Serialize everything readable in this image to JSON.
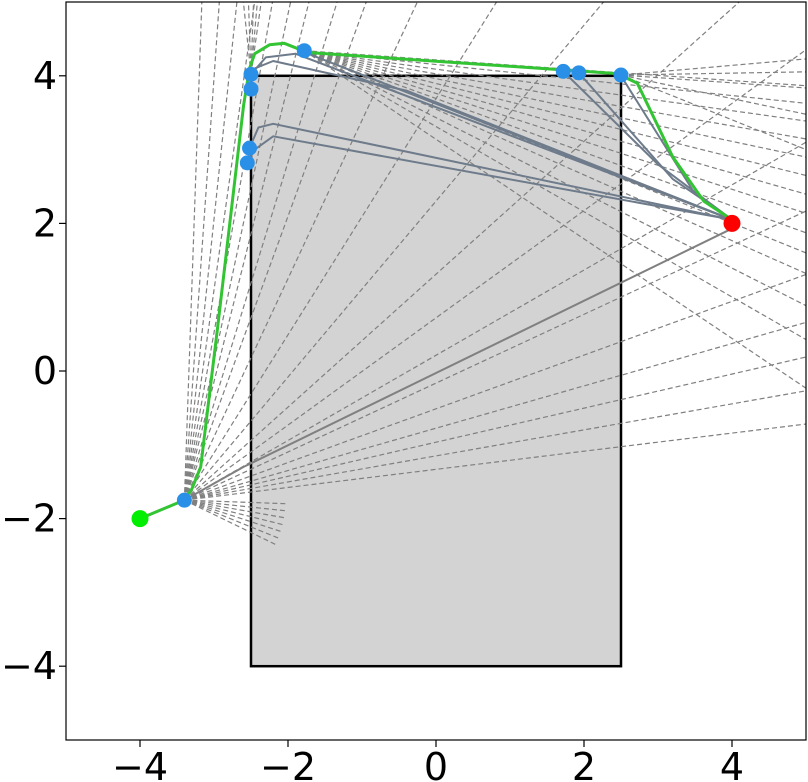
{
  "chart_data": {
    "type": "scatter",
    "title": "",
    "xlabel": "",
    "ylabel": "",
    "xlim": [
      -5,
      5
    ],
    "ylim": [
      -5,
      5
    ],
    "grid": false,
    "legend": "none",
    "x_ticks": [
      {
        "value": -4,
        "label": "−4"
      },
      {
        "value": -2,
        "label": "−2"
      },
      {
        "value": 0,
        "label": "0"
      },
      {
        "value": 2,
        "label": "2"
      },
      {
        "value": 4,
        "label": "4"
      }
    ],
    "y_ticks": [
      {
        "value": -4,
        "label": "−4"
      },
      {
        "value": -2,
        "label": "−2"
      },
      {
        "value": 0,
        "label": "0"
      },
      {
        "value": 2,
        "label": "2"
      },
      {
        "value": 4,
        "label": "4"
      }
    ],
    "obstacle": {
      "x0": -2.5,
      "x1": 2.5,
      "y0": -4,
      "y1": 4,
      "fill": "#d3d3d3",
      "edge": "#000000"
    },
    "start": {
      "x": -4,
      "y": -2,
      "color": "#00ee00"
    },
    "goal": {
      "x": 4,
      "y": 2,
      "color": "#ff0000"
    },
    "waypoints": {
      "color": "#2a8fe6",
      "points": [
        [
          -3.4,
          -1.75
        ],
        [
          -2.55,
          2.82
        ],
        [
          -2.52,
          3.02
        ],
        [
          -2.5,
          3.82
        ],
        [
          -2.5,
          4.02
        ],
        [
          -1.78,
          4.34
        ],
        [
          1.72,
          4.06
        ],
        [
          1.93,
          4.04
        ],
        [
          2.5,
          4.01
        ]
      ]
    },
    "final_path": {
      "color": "#33c433",
      "points": [
        [
          -4,
          -2
        ],
        [
          -3.4,
          -1.75
        ],
        [
          -3.3,
          -1.6
        ],
        [
          -3.18,
          -1.3
        ],
        [
          -2.95,
          0.6
        ],
        [
          -2.6,
          3.6
        ],
        [
          -2.52,
          4.1
        ],
        [
          -2.45,
          4.3
        ],
        [
          -2.25,
          4.42
        ],
        [
          -2.05,
          4.44
        ],
        [
          -1.85,
          4.36
        ],
        [
          -1.78,
          4.32
        ],
        [
          2.45,
          4.03
        ],
        [
          2.72,
          3.9
        ],
        [
          3.2,
          2.9
        ],
        [
          3.62,
          2.3
        ],
        [
          4,
          2.05
        ]
      ]
    },
    "candidate_paths": {
      "color": "#6e7b8b",
      "paths": [
        [
          [
            4,
            2.05
          ],
          [
            -1.78,
            4.32
          ]
        ],
        [
          [
            4,
            2.05
          ],
          [
            3.5,
            2.4
          ],
          [
            2.5,
            4.0
          ]
        ],
        [
          [
            4,
            2.05
          ],
          [
            3.2,
            2.6
          ],
          [
            1.93,
            4.04
          ]
        ],
        [
          [
            4,
            2.05
          ],
          [
            3.0,
            2.8
          ],
          [
            1.72,
            4.06
          ]
        ],
        [
          [
            4,
            2.05
          ],
          [
            -2.2,
            3.35
          ],
          [
            -2.4,
            3.3
          ],
          [
            -2.52,
            3.02
          ]
        ],
        [
          [
            4,
            2.05
          ],
          [
            -2.2,
            3.18
          ],
          [
            -2.45,
            3.0
          ],
          [
            -2.55,
            2.82
          ]
        ],
        [
          [
            4,
            2.05
          ],
          [
            -0.4,
            3.8
          ],
          [
            -2.2,
            4.2
          ],
          [
            -2.45,
            4.1
          ],
          [
            -2.52,
            3.85
          ]
        ],
        [
          [
            4,
            2.05
          ],
          [
            -1.9,
            4.3
          ],
          [
            -2.3,
            4.25
          ],
          [
            -2.5,
            4.02
          ]
        ],
        [
          [
            3.98,
            1.92
          ],
          [
            -2.6,
            -1.3
          ],
          [
            -3.4,
            -1.75
          ]
        ]
      ]
    },
    "rays": {
      "color": "#808080",
      "origins": [
        {
          "x": -3.4,
          "y": -1.75,
          "angles": [
            7,
            10,
            13,
            16,
            20,
            25,
            30,
            36,
            42,
            50,
            58,
            65,
            70,
            73,
            76,
            78,
            80,
            82,
            84,
            86,
            88,
            -2,
            -6,
            -10,
            -14,
            -18,
            -22,
            -26
          ]
        },
        {
          "x": -1.78,
          "y": 4.34,
          "angles": [
            -4,
            -6,
            -8,
            -10,
            -12,
            -14,
            -16,
            -18,
            -20,
            -22,
            -24,
            -27,
            -30,
            -34
          ]
        },
        {
          "x": -2.5,
          "y": 4.02,
          "angles": [
            82,
            85,
            88,
            92,
            96
          ]
        },
        {
          "x": 2.5,
          "y": 4.01,
          "angles": [
            1,
            5,
            -4,
            -12,
            -22
          ]
        }
      ]
    }
  }
}
